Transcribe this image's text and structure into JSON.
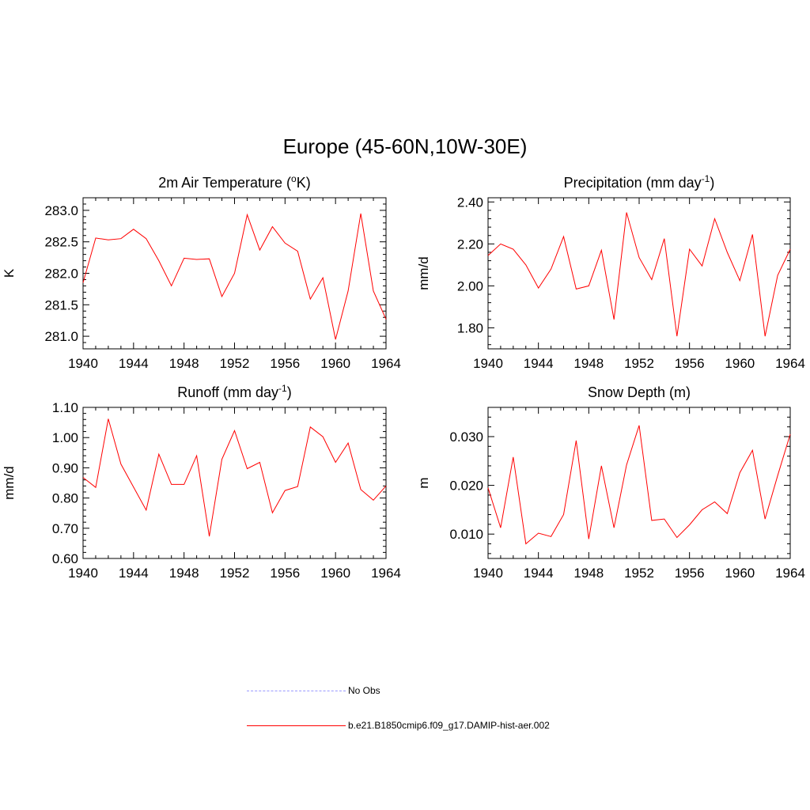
{
  "title": "Europe (45-60N,10W-30E)",
  "legend": [
    {
      "label": "No Obs",
      "color": "#9999ff",
      "style": "dashed"
    },
    {
      "label": "b.e21.B1850cmip6.f09_g17.DAMIP-hist-aer.002",
      "color": "#ff0000",
      "style": "solid"
    }
  ],
  "chart_data": [
    {
      "type": "line",
      "title": "2m Air Temperature (",
      "title_sup": "o",
      "title_after": "K)",
      "ylabel": "K",
      "xlim": [
        1940,
        1964
      ],
      "ylim": [
        280.8,
        283.2
      ],
      "xticks": [
        1940,
        1944,
        1948,
        1952,
        1956,
        1960,
        1964
      ],
      "yticks": [
        281.0,
        281.5,
        282.0,
        282.5,
        283.0
      ],
      "ytick_labels": [
        "281.0",
        "281.5",
        "282.0",
        "282.5",
        "283.0"
      ],
      "series": [
        {
          "color": "#ff0000",
          "x": [
            1940,
            1941,
            1942,
            1943,
            1944,
            1945,
            1946,
            1947,
            1948,
            1949,
            1950,
            1951,
            1952,
            1953,
            1954,
            1955,
            1956,
            1957,
            1958,
            1959,
            1960,
            1961,
            1962,
            1963,
            1964
          ],
          "values": [
            281.85,
            282.56,
            282.53,
            282.55,
            282.7,
            282.55,
            282.2,
            281.8,
            282.24,
            282.22,
            282.23,
            281.63,
            282.0,
            282.93,
            282.37,
            282.74,
            282.48,
            282.35,
            281.59,
            281.93,
            280.95,
            281.72,
            282.95,
            281.72,
            281.27
          ]
        }
      ]
    },
    {
      "type": "line",
      "title": "Precipitation (mm day",
      "title_sup": "-1",
      "title_after": ")",
      "ylabel": "mm/d",
      "xlim": [
        1940,
        1964
      ],
      "ylim": [
        1.7,
        2.42
      ],
      "xticks": [
        1940,
        1944,
        1948,
        1952,
        1956,
        1960,
        1964
      ],
      "yticks": [
        1.8,
        2.0,
        2.2,
        2.4
      ],
      "ytick_labels": [
        "1.80",
        "2.00",
        "2.20",
        "2.40"
      ],
      "series": [
        {
          "color": "#ff0000",
          "x": [
            1940,
            1941,
            1942,
            1943,
            1944,
            1945,
            1946,
            1947,
            1948,
            1949,
            1950,
            1951,
            1952,
            1953,
            1954,
            1955,
            1956,
            1957,
            1958,
            1959,
            1960,
            1961,
            1962,
            1963,
            1964
          ],
          "values": [
            2.145,
            2.2,
            2.175,
            2.1,
            1.99,
            2.08,
            2.235,
            1.985,
            2.0,
            2.17,
            1.84,
            2.35,
            2.135,
            2.03,
            2.225,
            1.76,
            2.175,
            2.095,
            2.32,
            2.16,
            2.025,
            2.245,
            1.76,
            2.05,
            2.175
          ]
        }
      ]
    },
    {
      "type": "line",
      "title": "Runoff (mm day",
      "title_sup": "-1",
      "title_after": ")",
      "ylabel": "mm/d",
      "xlim": [
        1940,
        1964
      ],
      "ylim": [
        0.6,
        1.1
      ],
      "xticks": [
        1940,
        1944,
        1948,
        1952,
        1956,
        1960,
        1964
      ],
      "yticks": [
        0.6,
        0.7,
        0.8,
        0.9,
        1.0,
        1.1
      ],
      "ytick_labels": [
        "0.60",
        "0.70",
        "0.80",
        "0.90",
        "1.00",
        "1.10"
      ],
      "series": [
        {
          "color": "#ff0000",
          "x": [
            1940,
            1941,
            1942,
            1943,
            1944,
            1945,
            1946,
            1947,
            1948,
            1949,
            1950,
            1951,
            1952,
            1953,
            1954,
            1955,
            1956,
            1957,
            1958,
            1959,
            1960,
            1961,
            1962,
            1963,
            1964
          ],
          "values": [
            0.868,
            0.835,
            1.062,
            0.912,
            0.836,
            0.76,
            0.945,
            0.845,
            0.845,
            0.94,
            0.673,
            0.928,
            1.023,
            0.897,
            0.918,
            0.751,
            0.825,
            0.838,
            1.035,
            1.003,
            0.918,
            0.982,
            0.828,
            0.793,
            0.84
          ]
        }
      ]
    },
    {
      "type": "line",
      "title": "Snow Depth (m)",
      "title_sup": "",
      "title_after": "",
      "ylabel": "m",
      "xlim": [
        1940,
        1964
      ],
      "ylim": [
        0.005,
        0.036
      ],
      "xticks": [
        1940,
        1944,
        1948,
        1952,
        1956,
        1960,
        1964
      ],
      "yticks": [
        0.01,
        0.02,
        0.03
      ],
      "ytick_labels": [
        "0.010",
        "0.020",
        "0.030"
      ],
      "series": [
        {
          "color": "#ff0000",
          "x": [
            1940,
            1941,
            1942,
            1943,
            1944,
            1945,
            1946,
            1947,
            1948,
            1949,
            1950,
            1951,
            1952,
            1953,
            1954,
            1955,
            1956,
            1957,
            1958,
            1959,
            1960,
            1961,
            1962,
            1963,
            1964
          ],
          "values": [
            0.0195,
            0.0113,
            0.0258,
            0.008,
            0.0102,
            0.0095,
            0.014,
            0.0292,
            0.009,
            0.024,
            0.0113,
            0.0242,
            0.0323,
            0.0128,
            0.0131,
            0.0093,
            0.0119,
            0.015,
            0.0166,
            0.0142,
            0.0226,
            0.0272,
            0.0131,
            0.022,
            0.0305
          ]
        }
      ]
    }
  ]
}
